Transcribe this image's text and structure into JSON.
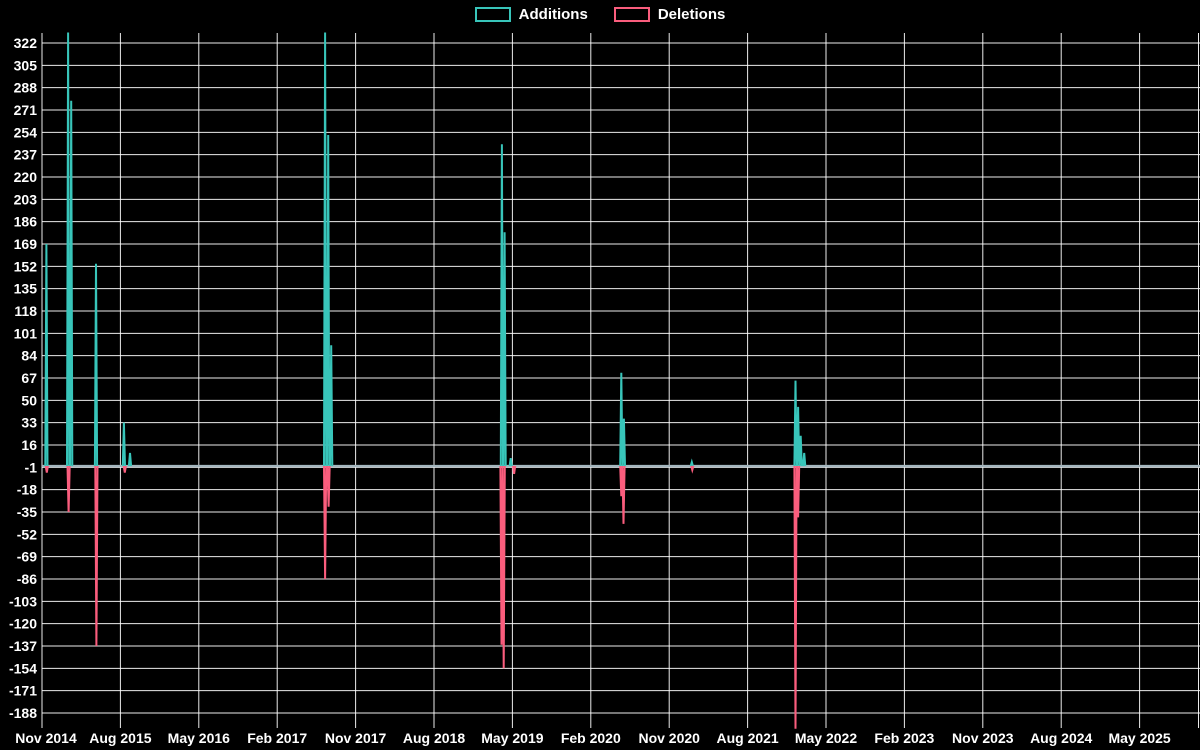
{
  "chart_data": {
    "type": "line",
    "title": "",
    "legend": [
      "Additions",
      "Deletions"
    ],
    "legend_position": "top-center",
    "background_color": "#000000",
    "grid_color": "#ffffff",
    "text_color": "#ffffff",
    "baseline_color": "#a4b6be",
    "baseline": 0,
    "x_tick_labels": [
      "Nov 2014",
      "Aug 2015",
      "May 2016",
      "Feb 2017",
      "Nov 2017",
      "Aug 2018",
      "May 2019",
      "Feb 2020",
      "Nov 2020",
      "Aug 2021",
      "May 2022",
      "Feb 2023",
      "Nov 2023",
      "Aug 2024",
      "May 2025"
    ],
    "months_per_x_tick": 9,
    "y_ticks": [
      322,
      305,
      288,
      271,
      254,
      237,
      220,
      203,
      186,
      169,
      152,
      135,
      118,
      101,
      84,
      67,
      50,
      33,
      16,
      -1,
      -18,
      -35,
      -52,
      -69,
      -86,
      -103,
      -120,
      -137,
      -154,
      -171,
      -188
    ],
    "ylim": [
      -200,
      330
    ],
    "grid": true,
    "note": "Values of 330 / -200 are spikes clipped at the plot edges (actual values exceed the visible axis range). X of each point = months after Nov 2014.",
    "series": [
      {
        "name": "Additions",
        "color": "#38c5ba",
        "points": [
          [
            0.5,
            169
          ],
          [
            3.0,
            330
          ],
          [
            3.35,
            278
          ],
          [
            6.2,
            154
          ],
          [
            9.4,
            33
          ],
          [
            10.1,
            10
          ],
          [
            32.5,
            330
          ],
          [
            32.85,
            252
          ],
          [
            33.2,
            92
          ],
          [
            52.8,
            245
          ],
          [
            53.1,
            178
          ],
          [
            53.8,
            6
          ],
          [
            66.5,
            71
          ],
          [
            66.8,
            36
          ],
          [
            74.6,
            3
          ],
          [
            86.5,
            65
          ],
          [
            86.8,
            45
          ],
          [
            87.1,
            23
          ],
          [
            87.5,
            10
          ]
        ]
      },
      {
        "name": "Deletions",
        "color": "#fa5d7d",
        "points": [
          [
            0.55,
            -5
          ],
          [
            3.05,
            -35
          ],
          [
            6.25,
            -137
          ],
          [
            9.5,
            -5
          ],
          [
            32.5,
            -86
          ],
          [
            32.9,
            -31
          ],
          [
            52.75,
            -136
          ],
          [
            53.0,
            -154
          ],
          [
            54.2,
            -6
          ],
          [
            66.5,
            -23
          ],
          [
            66.75,
            -44
          ],
          [
            74.65,
            -3
          ],
          [
            86.5,
            -200
          ],
          [
            86.8,
            -39
          ]
        ]
      }
    ]
  }
}
